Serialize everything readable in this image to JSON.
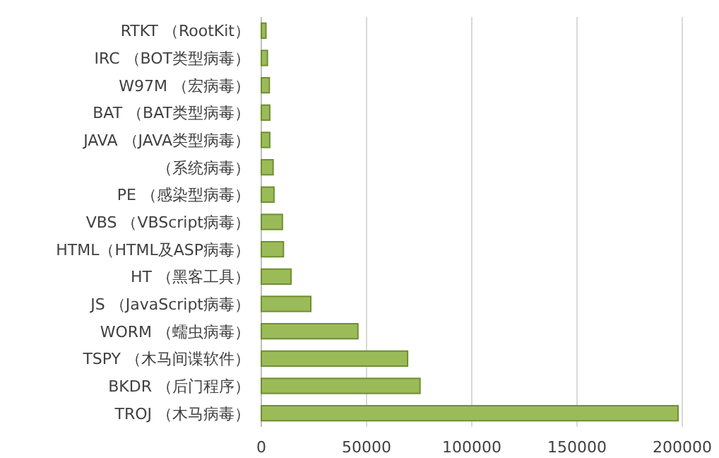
{
  "chart_data": {
    "type": "bar",
    "orientation": "horizontal",
    "categories": [
      "RTKT （RootKit）",
      "IRC （BOT类型病毒）",
      "W97M （宏病毒）",
      "BAT （BAT类型病毒）",
      "JAVA （JAVA类型病毒）",
      "（系统病毒）",
      "PE （感染型病毒）",
      "VBS （VBScript病毒）",
      "HTML（HTML及ASP病毒）",
      "HT （黑客工具）",
      "JS （JavaScript病毒）",
      "WORM （蠕虫病毒）",
      "TSPY （木马间谍软件）",
      "BKDR （后门程序）",
      "TROJ （木马病毒）"
    ],
    "values": [
      2200,
      2900,
      3800,
      4000,
      4000,
      5600,
      6000,
      10000,
      10500,
      14100,
      23500,
      45900,
      69500,
      75400,
      198000
    ],
    "color": "#9bbb59",
    "xlim": [
      0,
      200000
    ],
    "xticks": [
      0,
      50000,
      100000,
      150000,
      200000
    ],
    "grid": "x"
  }
}
